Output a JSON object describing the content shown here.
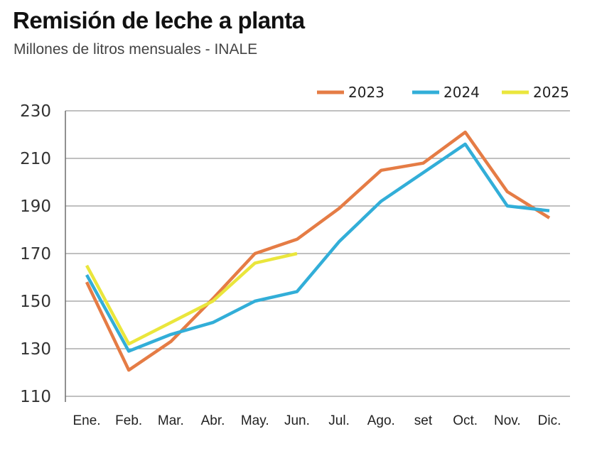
{
  "chart_data": {
    "type": "line",
    "title": "Remisión de leche a planta",
    "subtitle": "Millones de litros mensuales - INALE",
    "xlabel": "",
    "ylabel": "",
    "categories": [
      "Ene.",
      "Feb.",
      "Mar.",
      "Abr.",
      "May.",
      "Jun.",
      "Jul.",
      "Ago.",
      "set",
      "Oct.",
      "Nov.",
      "Dic."
    ],
    "ylim": [
      110,
      230
    ],
    "yticks": [
      110,
      130,
      150,
      170,
      190,
      210,
      230
    ],
    "grid": true,
    "legend_position": "top-right",
    "series": [
      {
        "name": "2023",
        "color": "#E57C45",
        "values": [
          158,
          121,
          133,
          151,
          170,
          176,
          189,
          205,
          208,
          221,
          196,
          185
        ]
      },
      {
        "name": "2024",
        "color": "#32AED8",
        "values": [
          161,
          129,
          136,
          141,
          150,
          154,
          175,
          192,
          204,
          216,
          190,
          188
        ]
      },
      {
        "name": "2025",
        "color": "#EAE63C",
        "values": [
          165,
          132,
          141,
          150,
          166,
          170,
          null,
          null,
          null,
          null,
          null,
          null
        ]
      }
    ]
  }
}
